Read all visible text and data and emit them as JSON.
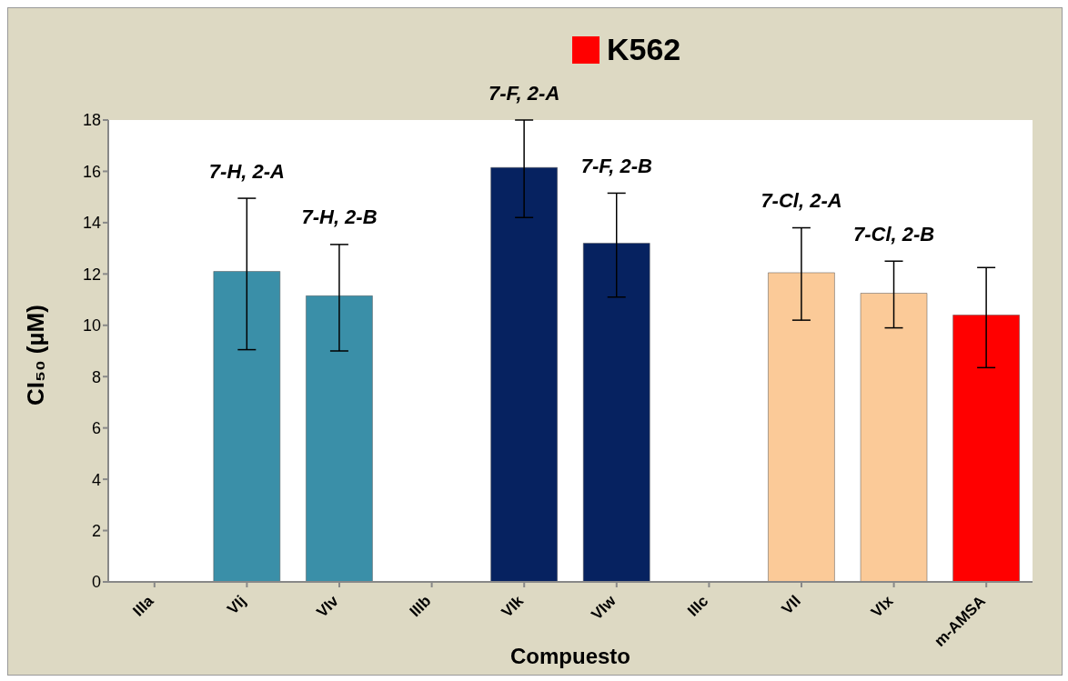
{
  "chart_data": {
    "type": "bar",
    "xlabel": "Compuesto",
    "ylabel": "CI₅₀ (µM)",
    "categories": [
      "IIIa",
      "VIj",
      "VIv",
      "IIIb",
      "VIk",
      "VIw",
      "IIIc",
      "VIl",
      "VIx",
      "m-AMSA"
    ],
    "series": [
      {
        "name": "K562",
        "color": "#ff0000",
        "colors": [
          "#3a8fa8",
          "#3a8fa8",
          "#3a8fa8",
          "#062260",
          "#062260",
          "#062260",
          "#fbca98",
          "#fbca98",
          "#fbca98",
          "#ff0000"
        ],
        "values": [
          0,
          12.1,
          11.15,
          0,
          16.15,
          13.2,
          0,
          12.05,
          11.25,
          10.4
        ],
        "errors": [
          null,
          [
            9.05,
            14.95
          ],
          [
            9,
            13.15
          ],
          null,
          [
            14.2,
            18
          ],
          [
            11.1,
            15.15
          ],
          null,
          [
            10.2,
            13.8
          ],
          [
            9.9,
            12.5
          ],
          [
            8.35,
            12.25
          ]
        ]
      }
    ],
    "ylim": [
      0,
      18
    ],
    "yticks": [
      0,
      2,
      4,
      6,
      8,
      10,
      12,
      14,
      16,
      18
    ],
    "legend": "top",
    "annotations": [
      "7-H, 2-A",
      "7-H, 2-B",
      "7-F, 2-A",
      "7-F, 2-B",
      "7-Cl, 2-A",
      "7-Cl, 2-B"
    ]
  }
}
